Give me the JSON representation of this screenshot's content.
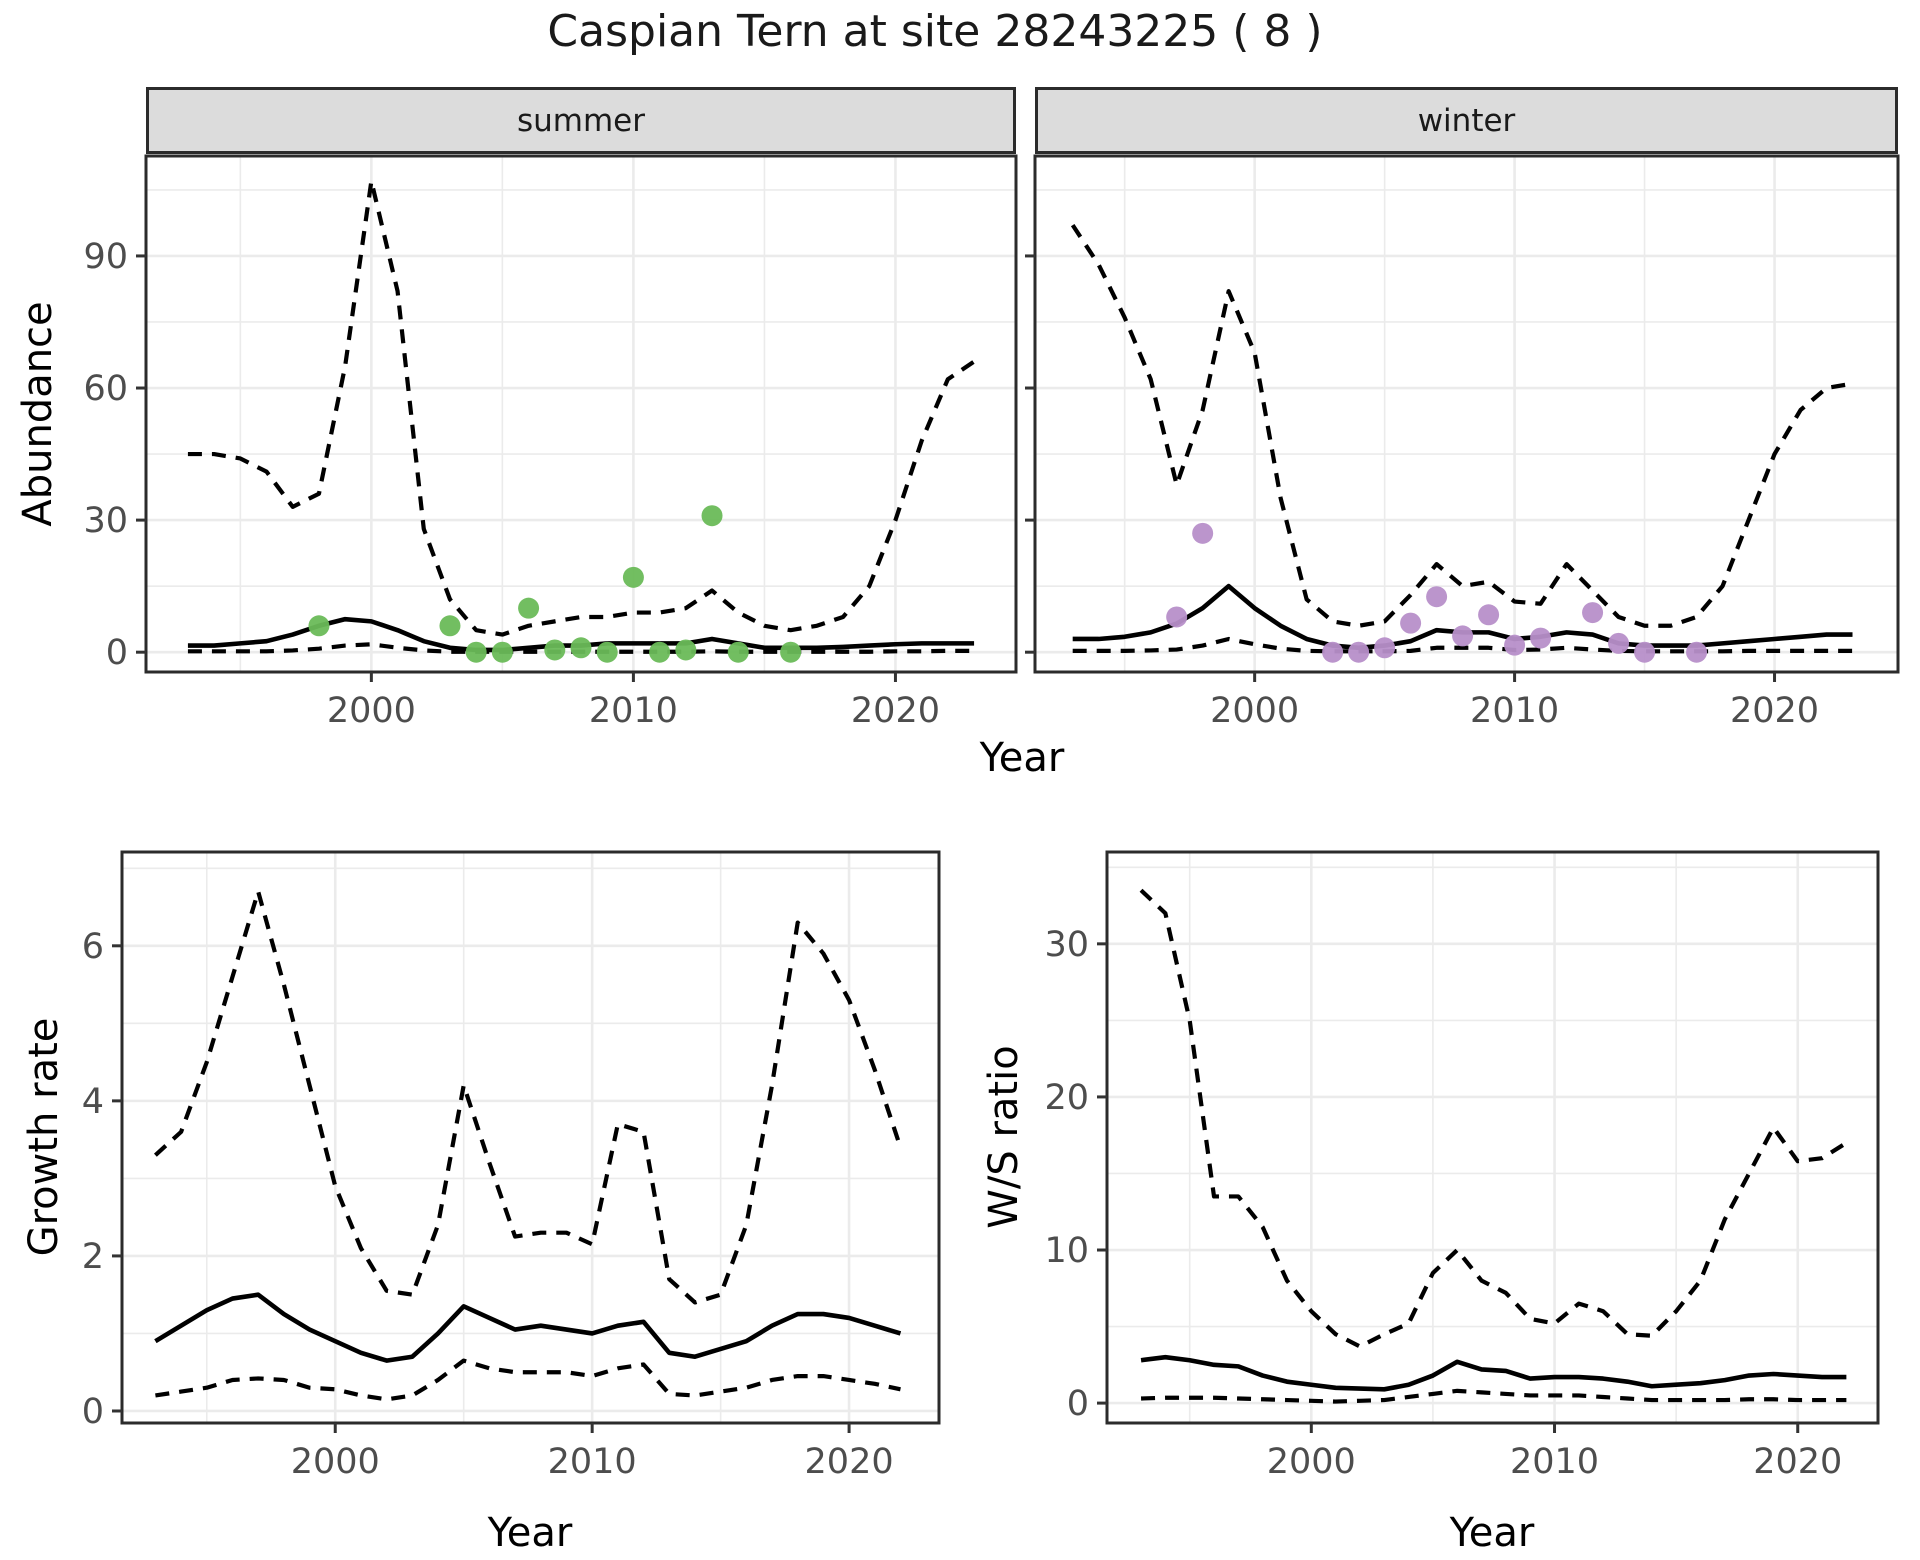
{
  "title": "Caspian Tern at site 28243225 ( 8 )",
  "facets": {
    "summer": "summer",
    "winter": "winter"
  },
  "axis_labels": {
    "abundance": "Abundance",
    "growth": "Growth rate",
    "ws": "W/S ratio",
    "year": "Year"
  },
  "colors": {
    "summer_dot": "#6abb58",
    "winter_dot": "#b78fc9",
    "line": "#000000",
    "grid": "#ebebeb",
    "strip_bg": "#dcdcdc",
    "panel_border": "#2b2b2b",
    "axis_text": "#4d4d4d",
    "background": "#ffffff"
  },
  "chart_data": [
    {
      "id": "abundance-summer",
      "type": "line",
      "facet": "summer",
      "title": "Abundance, summer facet: model median with dashed 95% interval and observed counts",
      "xlabel": "Year",
      "ylabel": "Abundance",
      "xlim": [
        1991.4,
        2024.6
      ],
      "ylim": [
        -4.5,
        112.7
      ],
      "xticks": [
        2000,
        2010,
        2020
      ],
      "yticks": [
        0,
        30,
        60,
        90
      ],
      "xminor": [
        1995,
        2005,
        2015
      ],
      "yminor": [
        15,
        45,
        75,
        105
      ],
      "x": [
        1993,
        1994,
        1995,
        1996,
        1997,
        1998,
        1999,
        2000,
        2001,
        2002,
        2003,
        2004,
        2005,
        2006,
        2007,
        2008,
        2009,
        2010,
        2011,
        2012,
        2013,
        2014,
        2015,
        2016,
        2017,
        2018,
        2019,
        2020,
        2021,
        2022,
        2023
      ],
      "series": [
        {
          "name": "upper-95ci",
          "style": "dashed",
          "values": [
            45,
            45,
            44,
            41,
            33,
            36,
            65,
            107,
            82,
            28,
            12,
            5,
            4,
            6,
            7,
            8,
            8,
            9,
            9,
            10,
            14,
            9,
            6,
            5,
            6,
            8,
            15,
            30,
            48,
            62,
            66
          ]
        },
        {
          "name": "estimate",
          "style": "solid",
          "values": [
            1.5,
            1.5,
            2,
            2.5,
            4,
            6,
            7.5,
            7,
            5,
            2.5,
            1,
            0.5,
            0.5,
            1,
            1.5,
            1.5,
            2,
            2,
            2,
            2,
            3,
            2,
            1,
            1,
            1,
            1.2,
            1.5,
            1.8,
            2,
            2,
            2
          ]
        },
        {
          "name": "lower-95ci",
          "style": "dashed",
          "values": [
            0.2,
            0.2,
            0.2,
            0.2,
            0.4,
            0.8,
            1.5,
            1.8,
            1,
            0.4,
            0.1,
            0.1,
            0.1,
            0.1,
            0.1,
            0.1,
            0.1,
            0.1,
            0.1,
            0.1,
            0.2,
            0.1,
            0.1,
            0.1,
            0.1,
            0.1,
            0.1,
            0.2,
            0.2,
            0.3,
            0.3
          ]
        }
      ],
      "points": {
        "name": "observed-counts",
        "color_key": "summer_dot",
        "x": [
          1998,
          2003,
          2004,
          2005,
          2006,
          2007,
          2008,
          2009,
          2010,
          2011,
          2012,
          2013,
          2014,
          2016
        ],
        "y": [
          6,
          6,
          0,
          0,
          10,
          0.5,
          1,
          0,
          17,
          0,
          0.5,
          31,
          0,
          0
        ]
      }
    },
    {
      "id": "abundance-winter",
      "type": "line",
      "facet": "winter",
      "title": "Abundance, winter facet: model median with dashed 95% interval and observed counts",
      "xlabel": "Year",
      "ylabel": "Abundance",
      "xlim": [
        1991.55,
        2024.75
      ],
      "ylim": [
        -4.5,
        112.7
      ],
      "xticks": [
        2000,
        2010,
        2020
      ],
      "yticks": [
        0,
        30,
        60,
        90
      ],
      "xminor": [
        1995,
        2005,
        2015
      ],
      "yminor": [
        15,
        45,
        75,
        105
      ],
      "x": [
        1993,
        1994,
        1995,
        1996,
        1997,
        1998,
        1999,
        2000,
        2001,
        2002,
        2003,
        2004,
        2005,
        2006,
        2007,
        2008,
        2009,
        2010,
        2011,
        2012,
        2013,
        2014,
        2015,
        2016,
        2017,
        2018,
        2019,
        2020,
        2021,
        2022,
        2023
      ],
      "series": [
        {
          "name": "upper-95ci",
          "style": "dashed",
          "values": [
            97,
            88,
            76,
            62,
            38,
            55,
            82,
            68,
            35,
            12,
            7,
            6,
            7,
            13,
            20,
            15,
            16,
            11.5,
            11,
            20,
            14,
            8,
            6,
            6,
            8,
            15,
            30,
            45,
            55,
            60,
            61
          ]
        },
        {
          "name": "estimate",
          "style": "solid",
          "values": [
            3,
            3,
            3.5,
            4.5,
            6.5,
            10,
            15,
            10,
            6,
            3,
            1.5,
            1,
            1.5,
            2.5,
            5,
            4.5,
            4.5,
            3,
            3.5,
            4.5,
            4,
            2,
            1.5,
            1.5,
            1.5,
            2,
            2.5,
            3,
            3.5,
            4,
            4
          ]
        },
        {
          "name": "lower-95ci",
          "style": "dashed",
          "values": [
            0.3,
            0.3,
            0.3,
            0.4,
            0.6,
            1.5,
            3,
            1.8,
            0.8,
            0.3,
            0.2,
            0.2,
            0.2,
            0.3,
            1,
            1,
            1,
            0.5,
            0.6,
            1,
            0.6,
            0.3,
            0.2,
            0.2,
            0.2,
            0.2,
            0.3,
            0.3,
            0.3,
            0.3,
            0.3
          ]
        }
      ],
      "points": {
        "name": "observed-counts",
        "color_key": "winter_dot",
        "x": [
          1997,
          1998,
          2003,
          2004,
          2005,
          2006,
          2007,
          2008,
          2009,
          2010,
          2011,
          2013,
          2014,
          2015,
          2017
        ],
        "y": [
          8,
          27,
          0,
          0,
          1,
          6.6,
          12.6,
          3.7,
          8.5,
          1.6,
          3.2,
          9,
          2,
          0,
          0
        ]
      }
    },
    {
      "id": "growth-rate",
      "type": "line",
      "facet": null,
      "title": "Growth rate: median with dashed 95% interval",
      "xlabel": "Year",
      "ylabel": "Growth rate",
      "xlim": [
        1991.7,
        2023.5
      ],
      "ylim": [
        -0.155,
        7.21
      ],
      "xticks": [
        2000,
        2010,
        2020
      ],
      "yticks": [
        0,
        2,
        4,
        6
      ],
      "xminor": [
        1995,
        2005,
        2015
      ],
      "yminor": [
        1,
        3,
        5,
        7
      ],
      "x": [
        1993,
        1994,
        1995,
        1996,
        1997,
        1998,
        1999,
        2000,
        2001,
        2002,
        2003,
        2004,
        2005,
        2006,
        2007,
        2008,
        2009,
        2010,
        2011,
        2012,
        2013,
        2014,
        2015,
        2016,
        2017,
        2018,
        2019,
        2020,
        2021,
        2022
      ],
      "series": [
        {
          "name": "upper-95ci",
          "style": "dashed",
          "values": [
            3.3,
            3.6,
            4.5,
            5.6,
            6.7,
            5.5,
            4.2,
            2.9,
            2.1,
            1.55,
            1.5,
            2.4,
            4.2,
            3.2,
            2.25,
            2.3,
            2.3,
            2.15,
            3.7,
            3.6,
            1.7,
            1.4,
            1.5,
            2.4,
            4.2,
            6.3,
            5.9,
            5.3,
            4.4,
            3.4
          ]
        },
        {
          "name": "estimate",
          "style": "solid",
          "values": [
            0.9,
            1.1,
            1.3,
            1.45,
            1.5,
            1.25,
            1.05,
            0.9,
            0.75,
            0.65,
            0.7,
            1.0,
            1.35,
            1.2,
            1.05,
            1.1,
            1.05,
            1.0,
            1.1,
            1.15,
            0.75,
            0.7,
            0.8,
            0.9,
            1.1,
            1.25,
            1.25,
            1.2,
            1.1,
            1.0
          ]
        },
        {
          "name": "lower-95ci",
          "style": "dashed",
          "values": [
            0.2,
            0.25,
            0.3,
            0.4,
            0.42,
            0.4,
            0.3,
            0.28,
            0.2,
            0.15,
            0.2,
            0.4,
            0.65,
            0.55,
            0.5,
            0.5,
            0.5,
            0.45,
            0.55,
            0.6,
            0.22,
            0.2,
            0.25,
            0.3,
            0.4,
            0.45,
            0.45,
            0.4,
            0.35,
            0.28
          ]
        }
      ],
      "points": null
    },
    {
      "id": "ws-ratio",
      "type": "line",
      "facet": null,
      "title": "Winter/Summer ratio: median with dashed 95% interval",
      "xlabel": "Year",
      "ylabel": "W/S ratio",
      "xlim": [
        1991.6,
        2023.3
      ],
      "ylim": [
        -1.3,
        36.0
      ],
      "xticks": [
        2000,
        2010,
        2020
      ],
      "yticks": [
        0,
        10,
        20,
        30
      ],
      "xminor": [
        1995,
        2005,
        2015
      ],
      "yminor": [
        5,
        15,
        25,
        35
      ],
      "x": [
        1993,
        1994,
        1995,
        1996,
        1997,
        1998,
        1999,
        2000,
        2001,
        2002,
        2003,
        2004,
        2005,
        2006,
        2007,
        2008,
        2009,
        2010,
        2011,
        2012,
        2013,
        2014,
        2015,
        2016,
        2017,
        2018,
        2019,
        2020,
        2021,
        2022
      ],
      "series": [
        {
          "name": "upper-95ci",
          "style": "dashed",
          "values": [
            33.5,
            32,
            25,
            13.5,
            13.5,
            11.5,
            8,
            6,
            4.5,
            3.7,
            4.5,
            5.2,
            8.5,
            10,
            8,
            7.2,
            5.5,
            5.2,
            6.5,
            6,
            4.5,
            4.4,
            6,
            8,
            12,
            15,
            18,
            15.8,
            16,
            17
          ]
        },
        {
          "name": "estimate",
          "style": "solid",
          "values": [
            2.8,
            3.0,
            2.8,
            2.5,
            2.4,
            1.8,
            1.4,
            1.2,
            1.0,
            0.95,
            0.9,
            1.2,
            1.8,
            2.7,
            2.2,
            2.1,
            1.6,
            1.7,
            1.7,
            1.6,
            1.4,
            1.1,
            1.2,
            1.3,
            1.5,
            1.8,
            1.9,
            1.8,
            1.7,
            1.7
          ]
        },
        {
          "name": "lower-95ci",
          "style": "dashed",
          "values": [
            0.3,
            0.35,
            0.35,
            0.35,
            0.3,
            0.25,
            0.2,
            0.15,
            0.1,
            0.15,
            0.2,
            0.4,
            0.6,
            0.8,
            0.7,
            0.6,
            0.5,
            0.5,
            0.5,
            0.4,
            0.3,
            0.2,
            0.2,
            0.2,
            0.2,
            0.25,
            0.25,
            0.2,
            0.2,
            0.2
          ]
        }
      ],
      "points": null
    }
  ]
}
